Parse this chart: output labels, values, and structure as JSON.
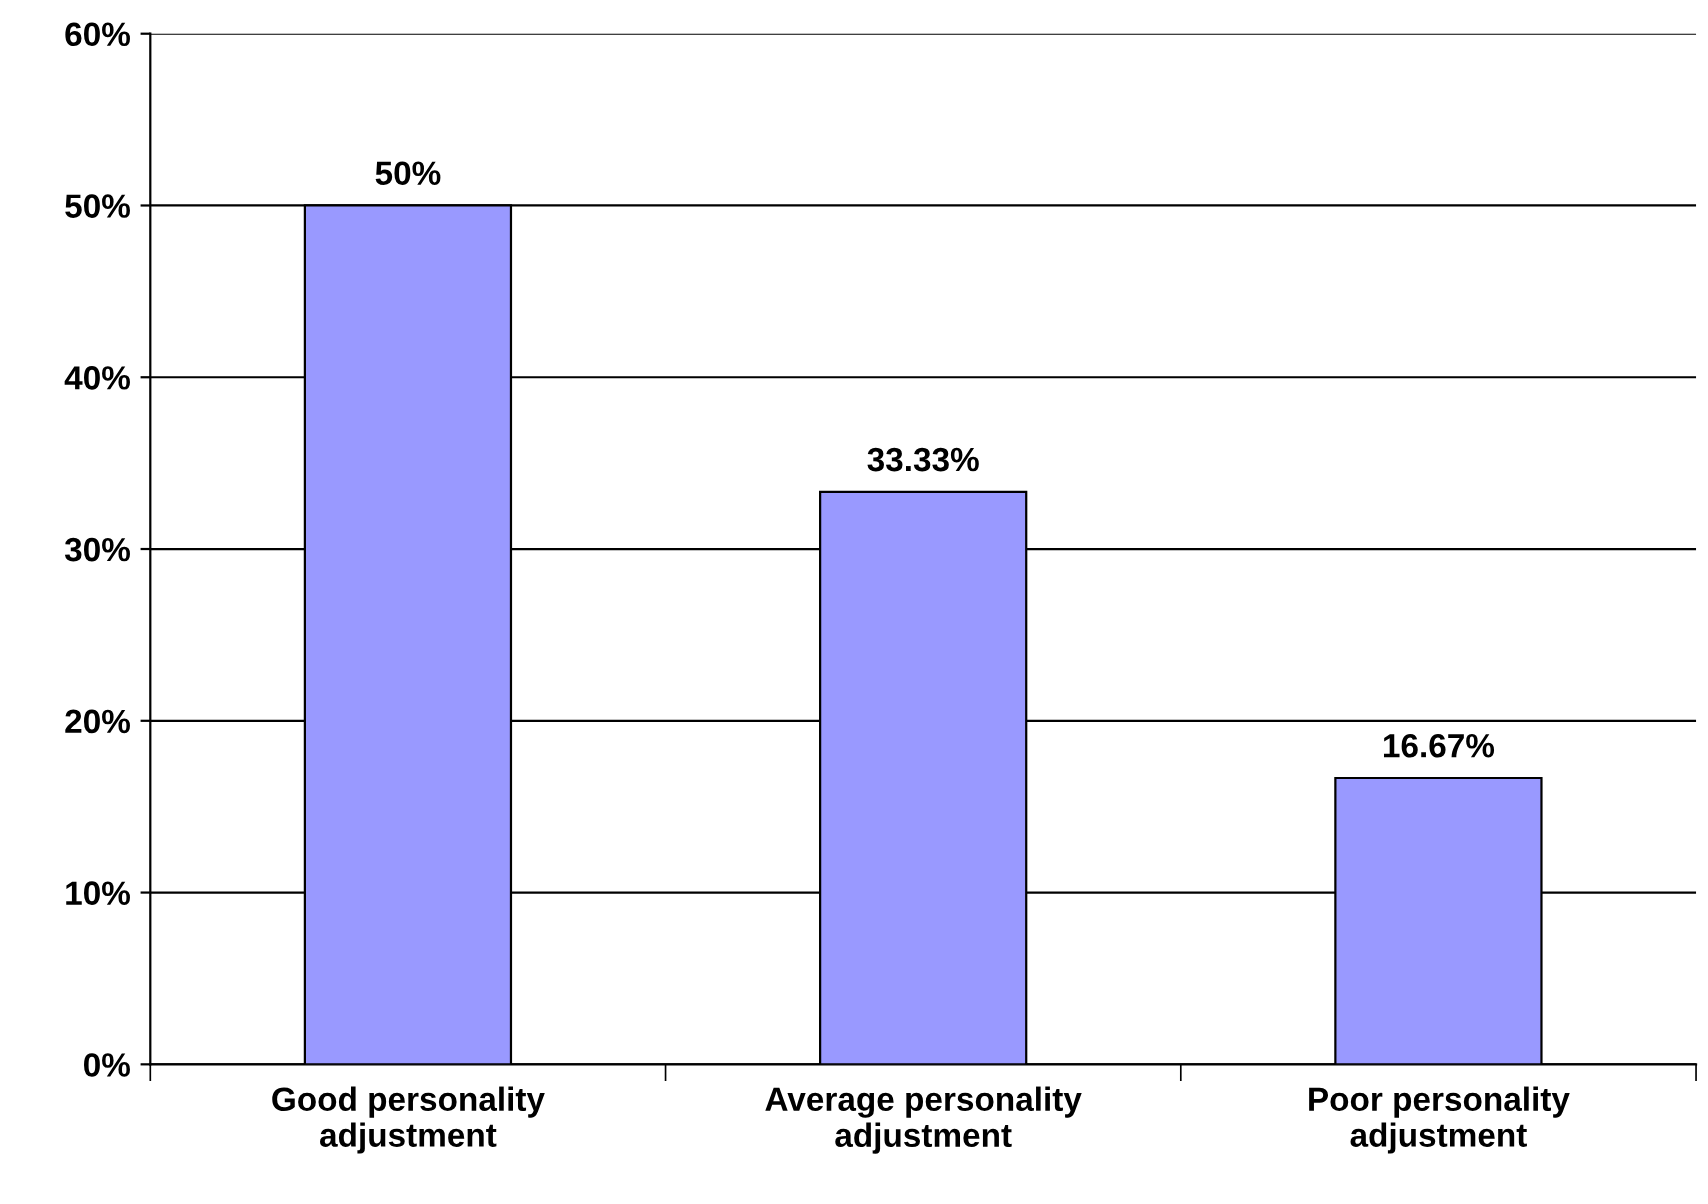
{
  "chart_data": {
    "type": "bar",
    "categories": [
      "Good personality\nadjustment",
      "Average personality\nadjustment",
      "Poor personality\nadjustment"
    ],
    "values": [
      50,
      33.33,
      16.67
    ],
    "value_labels": [
      "50%",
      "33.33%",
      "16.67%"
    ],
    "color": "#9999ff",
    "ylim": [
      0,
      60
    ],
    "yticks": [
      {
        "value": 0,
        "label": "0%"
      },
      {
        "value": 10,
        "label": "10%"
      },
      {
        "value": 20,
        "label": "20%"
      },
      {
        "value": 30,
        "label": "30%"
      },
      {
        "value": 40,
        "label": "40%"
      },
      {
        "value": 50,
        "label": "50%"
      },
      {
        "value": 60,
        "label": "60%"
      }
    ],
    "grid": "y"
  }
}
